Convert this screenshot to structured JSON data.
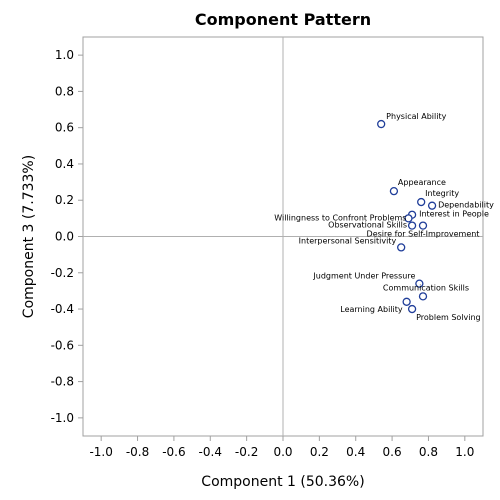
{
  "chart_data": {
    "type": "scatter",
    "title": "Component Pattern",
    "xlabel": "Component 1 (50.36%)",
    "ylabel": "Component 3 (7.733%)",
    "xlim": [
      -1.1,
      1.1
    ],
    "ylim": [
      -1.1,
      1.1
    ],
    "xticks": [
      -1.0,
      -0.8,
      -0.6,
      -0.4,
      -0.2,
      0.0,
      0.2,
      0.4,
      0.6,
      0.8,
      1.0
    ],
    "yticks": [
      -1.0,
      -0.8,
      -0.6,
      -0.4,
      -0.2,
      0.0,
      0.2,
      0.4,
      0.6,
      0.8,
      1.0
    ],
    "tick_labels": [
      "-1.0",
      "-0.8",
      "-0.6",
      "-0.4",
      "-0.2",
      "0.0",
      "0.2",
      "0.4",
      "0.6",
      "0.8",
      "1.0"
    ],
    "reference_lines": {
      "x": 0,
      "y": 0
    },
    "marker_color": "#1f3d99",
    "reference_line_color": "#b0b0b0",
    "points": [
      {
        "label": "Physical Ability",
        "x": 0.54,
        "y": 0.62,
        "anchor": "start",
        "dx": 5,
        "dy": -5
      },
      {
        "label": "Appearance",
        "x": 0.61,
        "y": 0.25,
        "anchor": "start",
        "dx": 4,
        "dy": -6
      },
      {
        "label": "Integrity",
        "x": 0.76,
        "y": 0.19,
        "anchor": "start",
        "dx": 4,
        "dy": -6
      },
      {
        "label": "Dependability",
        "x": 0.82,
        "y": 0.17,
        "anchor": "start",
        "dx": 6,
        "dy": 2
      },
      {
        "label": "Interest in People",
        "x": 0.71,
        "y": 0.12,
        "anchor": "start",
        "dx": 7,
        "dy": 2
      },
      {
        "label": "Willingness to Confront Problems",
        "x": 0.69,
        "y": 0.1,
        "anchor": "end",
        "dx": -2,
        "dy": 2
      },
      {
        "label": "Observational Skills",
        "x": 0.71,
        "y": 0.06,
        "anchor": "end",
        "dx": -5,
        "dy": 2
      },
      {
        "label": "Desire for Self-Improvement",
        "x": 0.77,
        "y": 0.06,
        "anchor": "middle",
        "dx": 0,
        "dy": 11
      },
      {
        "label": "Interpersonal Sensitivity",
        "x": 0.65,
        "y": -0.06,
        "anchor": "end",
        "dx": -5,
        "dy": -4
      },
      {
        "label": "Judgment Under Pressure",
        "x": 0.75,
        "y": -0.26,
        "anchor": "end",
        "dx": -4,
        "dy": -5
      },
      {
        "label": "Communication Skills",
        "x": 0.77,
        "y": -0.33,
        "anchor": "middle",
        "dx": 3,
        "dy": -6
      },
      {
        "label": "Learning Ability",
        "x": 0.68,
        "y": -0.36,
        "anchor": "end",
        "dx": -4,
        "dy": 10
      },
      {
        "label": "Problem Solving",
        "x": 0.71,
        "y": -0.4,
        "anchor": "start",
        "dx": 4,
        "dy": 11
      }
    ]
  }
}
